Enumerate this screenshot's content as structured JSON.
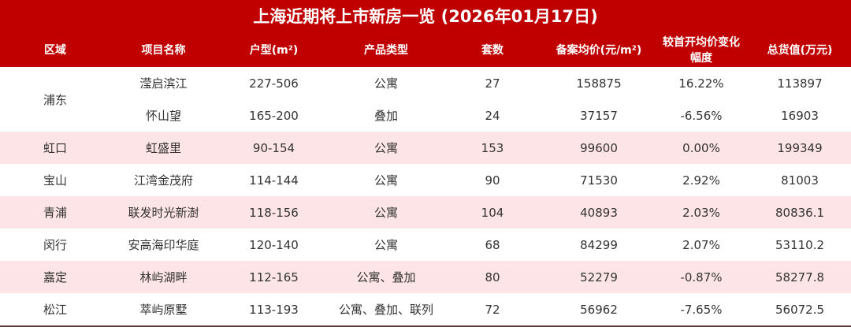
{
  "title": "上海近期将上市新房一览 (2026年01月17日)",
  "colors": {
    "header_bg": "#c00000",
    "stripe_bg": "#fde4e6"
  },
  "columns": [
    "区域",
    "项目名称",
    "户型(m²)",
    "产品类型",
    "套数",
    "备案均价(元/m²)",
    "较首开均价变化幅度",
    "总货值(万元)"
  ],
  "rows": [
    {
      "region": "浦东",
      "name": "滢启滨江",
      "size": "227-506",
      "type": "公寓",
      "units": "27",
      "price": "158875",
      "change": "16.22%",
      "total": "113897"
    },
    {
      "region": "",
      "name": "怀山望",
      "size": "165-200",
      "type": "叠加",
      "units": "24",
      "price": "37157",
      "change": "-6.56%",
      "total": "16903"
    },
    {
      "region": "虹口",
      "name": "虹盛里",
      "size": "90-154",
      "type": "公寓",
      "units": "153",
      "price": "99600",
      "change": "0.00%",
      "total": "199349"
    },
    {
      "region": "宝山",
      "name": "江湾金茂府",
      "size": "114-144",
      "type": "公寓",
      "units": "90",
      "price": "71530",
      "change": "2.92%",
      "total": "81003"
    },
    {
      "region": "青浦",
      "name": "联发时光新澍",
      "size": "118-156",
      "type": "公寓",
      "units": "104",
      "price": "40893",
      "change": "2.03%",
      "total": "80836.1"
    },
    {
      "region": "闵行",
      "name": "安高海印华庭",
      "size": "120-140",
      "type": "公寓",
      "units": "68",
      "price": "84299",
      "change": "2.07%",
      "total": "53110.2"
    },
    {
      "region": "嘉定",
      "name": "林屿湖畔",
      "size": "112-165",
      "type": "公寓、叠加",
      "units": "80",
      "price": "52279",
      "change": "-0.87%",
      "total": "58277.8"
    },
    {
      "region": "松江",
      "name": "萃屿原墅",
      "size": "113-193",
      "type": "公寓、叠加、联列",
      "units": "72",
      "price": "56962",
      "change": "-7.65%",
      "total": "56072.5"
    }
  ]
}
